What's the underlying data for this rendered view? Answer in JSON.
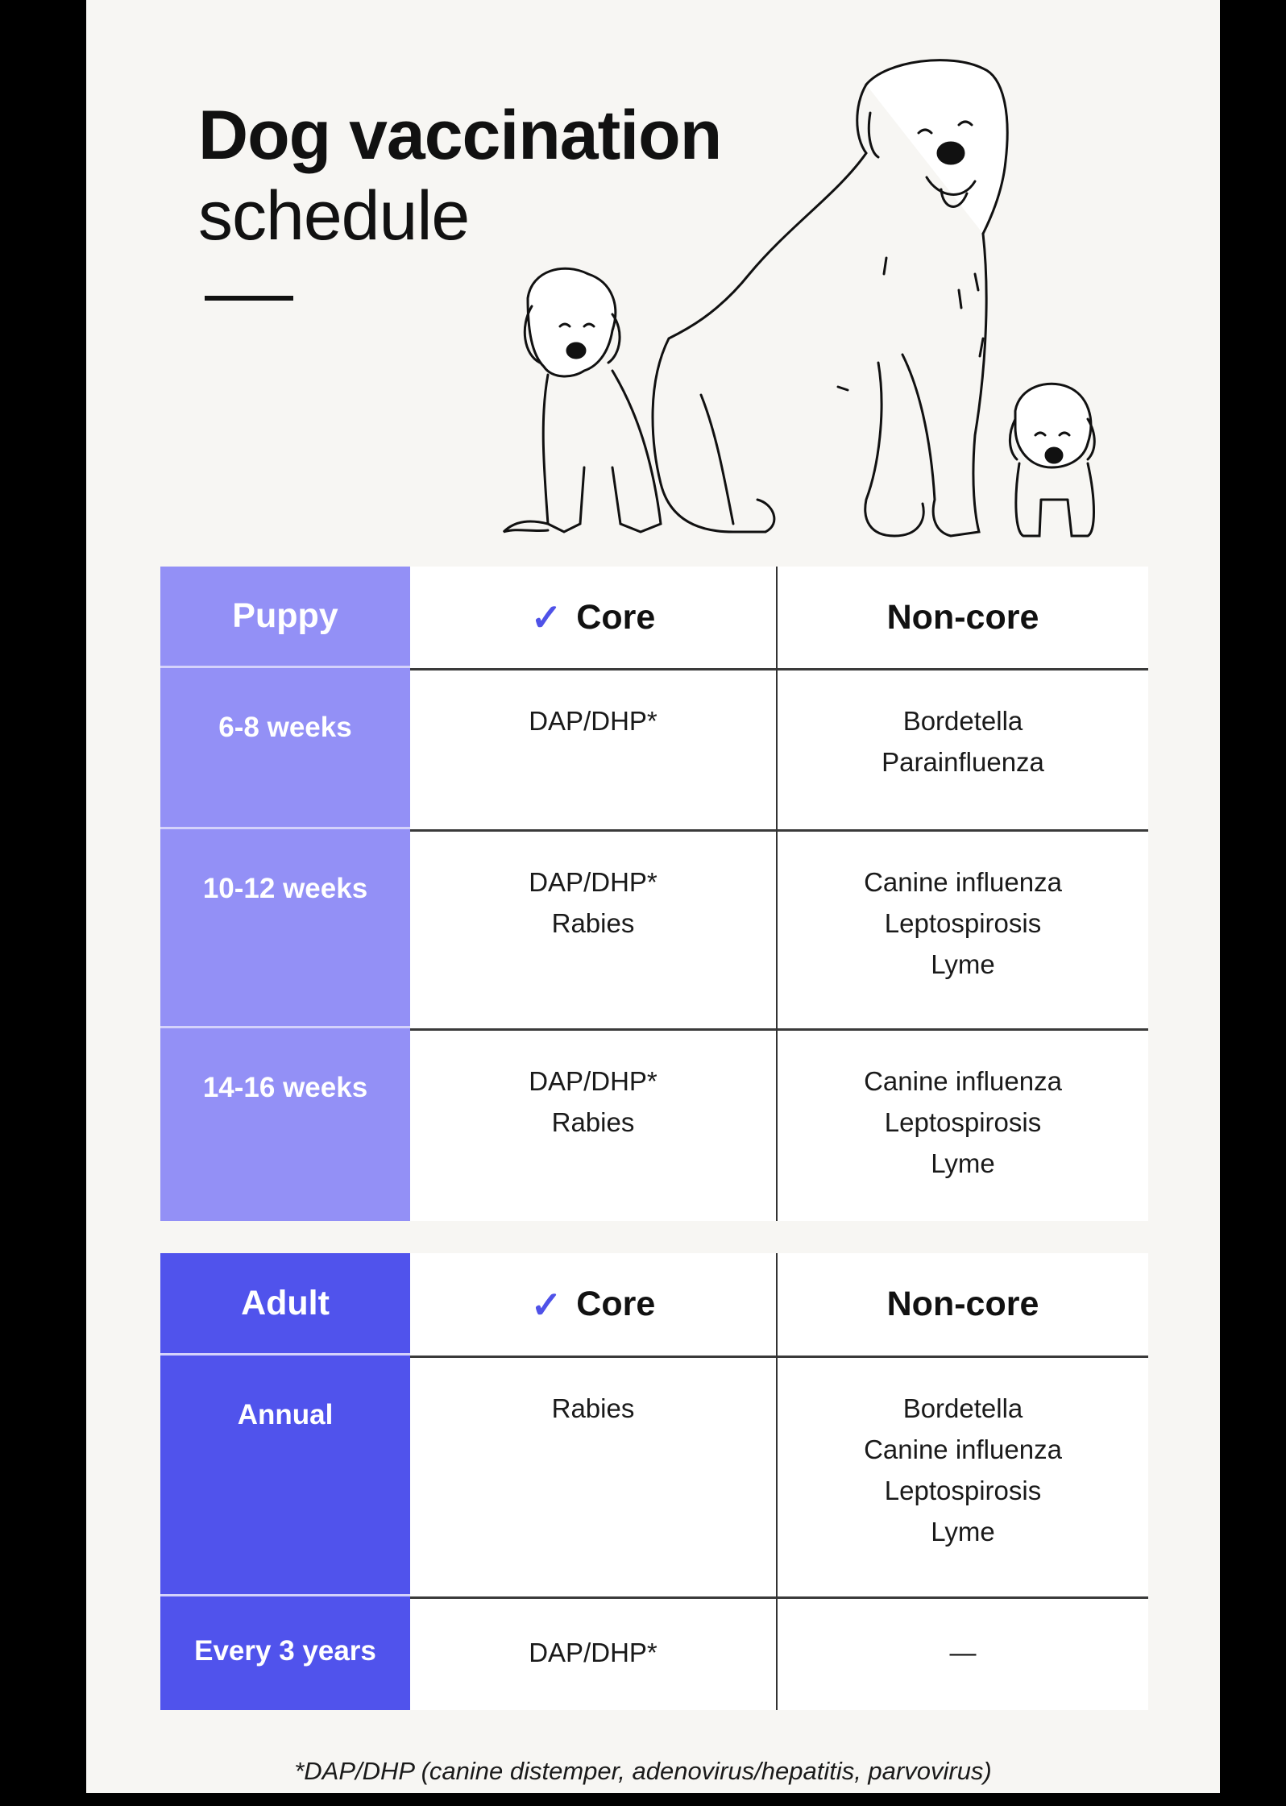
{
  "title": {
    "line1": "Dog vaccination",
    "line2": "schedule"
  },
  "colors": {
    "puppy": "#9390f6",
    "adult": "#5053ec",
    "check": "#4f52e8",
    "background": "#f7f6f3"
  },
  "puppy_table": {
    "header": {
      "group": "Puppy",
      "core": "Core",
      "noncore": "Non-core",
      "core_icon": "checkmark-icon"
    },
    "rows": [
      {
        "age": "6-8 weeks",
        "core": [
          "DAP/DHP*"
        ],
        "noncore": [
          "Bordetella",
          "Parainfluenza"
        ]
      },
      {
        "age": "10-12 weeks",
        "core": [
          "DAP/DHP*",
          "Rabies"
        ],
        "noncore": [
          "Canine influenza",
          "Leptospirosis",
          "Lyme"
        ]
      },
      {
        "age": "14-16 weeks",
        "core": [
          "DAP/DHP*",
          "Rabies"
        ],
        "noncore": [
          "Canine influenza",
          "Leptospirosis",
          "Lyme"
        ]
      }
    ]
  },
  "adult_table": {
    "header": {
      "group": "Adult",
      "core": "Core",
      "noncore": "Non-core",
      "core_icon": "checkmark-icon"
    },
    "rows": [
      {
        "age": "Annual",
        "core": [
          "Rabies"
        ],
        "noncore": [
          "Bordetella",
          "Canine influenza",
          "Leptospirosis",
          "Lyme"
        ]
      },
      {
        "age": "Every 3 years",
        "core": [
          "DAP/DHP*"
        ],
        "noncore": [
          "—"
        ]
      }
    ]
  },
  "footnote": "*DAP/DHP (canine distemper, adenovirus/hepatitis, parvovirus)"
}
